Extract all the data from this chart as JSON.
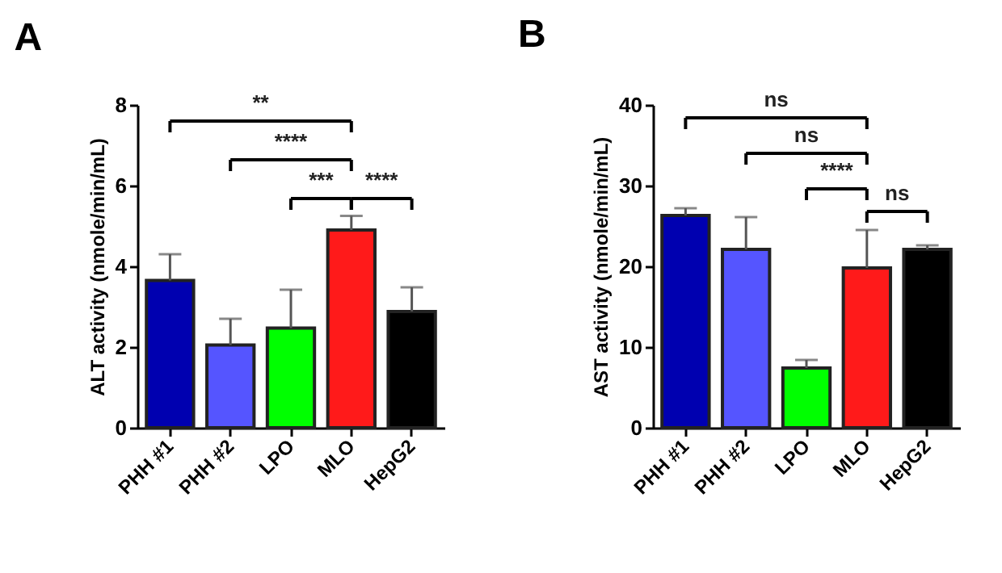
{
  "chart_data": [
    {
      "type": "bar",
      "title": "A",
      "ylabel": "ALT activity (nmole/min/mL)",
      "categories": [
        "PHH #1",
        "PHH #2",
        "LPO",
        "MLO",
        "HepG2"
      ],
      "values": [
        3.65,
        2.05,
        2.47,
        4.9,
        2.88
      ],
      "colors": [
        "#0000b0",
        "#5555ff",
        "#00ff00",
        "#ff1a1a",
        "#000000"
      ],
      "errors": [
        [
          3.65,
          4.3
        ],
        [
          2.05,
          2.7
        ],
        [
          2.47,
          3.42
        ],
        [
          4.9,
          5.25
        ],
        [
          2.88,
          3.48
        ]
      ],
      "ylim": [
        0,
        8
      ],
      "yticks": [
        0,
        2,
        4,
        6,
        8
      ],
      "grid": false,
      "annotations": [
        "**",
        "****",
        "***",
        "****"
      ]
    },
    {
      "type": "bar",
      "title": "B",
      "ylabel": "AST activity (nmole/min/mL)",
      "categories": [
        "PHH #1",
        "PHH #2",
        "LPO",
        "MLO",
        "HepG2"
      ],
      "values": [
        26.3,
        22.1,
        7.4,
        19.8,
        22.1
      ],
      "colors": [
        "#0000b0",
        "#5555ff",
        "#00ff00",
        "#ff1a1a",
        "#000000"
      ],
      "errors": [
        [
          26.3,
          27.2
        ],
        [
          22.1,
          26.1
        ],
        [
          7.4,
          8.4
        ],
        [
          19.8,
          24.5
        ],
        [
          22.1,
          22.6
        ]
      ],
      "ylim": [
        0,
        40
      ],
      "yticks": [
        0,
        10,
        20,
        30,
        40
      ],
      "grid": false,
      "annotations": [
        "ns",
        "ns",
        "****",
        "ns"
      ]
    }
  ]
}
